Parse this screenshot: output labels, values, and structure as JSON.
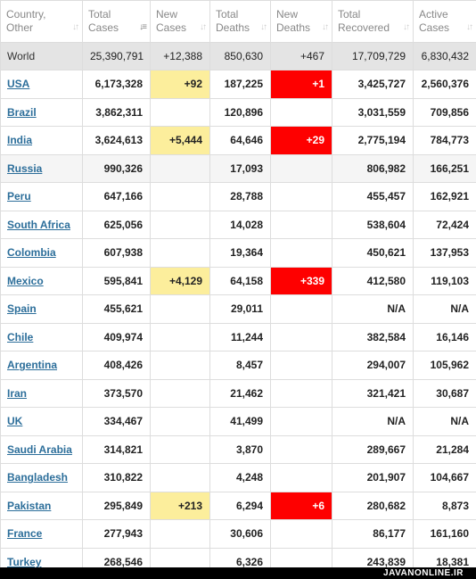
{
  "columns": [
    {
      "line1": "Country,",
      "line2": "Other",
      "sort_icon": "sort-icon",
      "active": false
    },
    {
      "line1": "Total",
      "line2": "Cases",
      "sort_icon": "sort-desc-icon",
      "active": true
    },
    {
      "line1": "New",
      "line2": "Cases",
      "sort_icon": "sort-icon",
      "active": false
    },
    {
      "line1": "Total",
      "line2": "Deaths",
      "sort_icon": "sort-icon",
      "active": false
    },
    {
      "line1": "New",
      "line2": "Deaths",
      "sort_icon": "sort-icon",
      "active": false
    },
    {
      "line1": "Total",
      "line2": "Recovered",
      "sort_icon": "sort-icon",
      "active": false
    },
    {
      "line1": "Active",
      "line2": "Cases",
      "sort_icon": "sort-icon",
      "active": false
    }
  ],
  "world": {
    "country": "World",
    "total_cases": "25,390,791",
    "new_cases": "+12,388",
    "total_deaths": "850,630",
    "new_deaths": "+467",
    "total_recovered": "17,709,729",
    "active_cases": "6,830,432"
  },
  "rows": [
    {
      "country": "USA",
      "total_cases": "6,173,328",
      "new_cases": "+92",
      "total_deaths": "187,225",
      "new_deaths": "+1",
      "total_recovered": "3,425,727",
      "active_cases": "2,560,376"
    },
    {
      "country": "Brazil",
      "total_cases": "3,862,311",
      "new_cases": "",
      "total_deaths": "120,896",
      "new_deaths": "",
      "total_recovered": "3,031,559",
      "active_cases": "709,856"
    },
    {
      "country": "India",
      "total_cases": "3,624,613",
      "new_cases": "+5,444",
      "total_deaths": "64,646",
      "new_deaths": "+29",
      "total_recovered": "2,775,194",
      "active_cases": "784,773"
    },
    {
      "country": "Russia",
      "total_cases": "990,326",
      "new_cases": "",
      "total_deaths": "17,093",
      "new_deaths": "",
      "total_recovered": "806,982",
      "active_cases": "166,251"
    },
    {
      "country": "Peru",
      "total_cases": "647,166",
      "new_cases": "",
      "total_deaths": "28,788",
      "new_deaths": "",
      "total_recovered": "455,457",
      "active_cases": "162,921"
    },
    {
      "country": "South Africa",
      "total_cases": "625,056",
      "new_cases": "",
      "total_deaths": "14,028",
      "new_deaths": "",
      "total_recovered": "538,604",
      "active_cases": "72,424"
    },
    {
      "country": "Colombia",
      "total_cases": "607,938",
      "new_cases": "",
      "total_deaths": "19,364",
      "new_deaths": "",
      "total_recovered": "450,621",
      "active_cases": "137,953"
    },
    {
      "country": "Mexico",
      "total_cases": "595,841",
      "new_cases": "+4,129",
      "total_deaths": "64,158",
      "new_deaths": "+339",
      "total_recovered": "412,580",
      "active_cases": "119,103"
    },
    {
      "country": "Spain",
      "total_cases": "455,621",
      "new_cases": "",
      "total_deaths": "29,011",
      "new_deaths": "",
      "total_recovered": "N/A",
      "active_cases": "N/A"
    },
    {
      "country": "Chile",
      "total_cases": "409,974",
      "new_cases": "",
      "total_deaths": "11,244",
      "new_deaths": "",
      "total_recovered": "382,584",
      "active_cases": "16,146"
    },
    {
      "country": "Argentina",
      "total_cases": "408,426",
      "new_cases": "",
      "total_deaths": "8,457",
      "new_deaths": "",
      "total_recovered": "294,007",
      "active_cases": "105,962"
    },
    {
      "country": "Iran",
      "total_cases": "373,570",
      "new_cases": "",
      "total_deaths": "21,462",
      "new_deaths": "",
      "total_recovered": "321,421",
      "active_cases": "30,687"
    },
    {
      "country": "UK",
      "total_cases": "334,467",
      "new_cases": "",
      "total_deaths": "41,499",
      "new_deaths": "",
      "total_recovered": "N/A",
      "active_cases": "N/A"
    },
    {
      "country": "Saudi Arabia",
      "total_cases": "314,821",
      "new_cases": "",
      "total_deaths": "3,870",
      "new_deaths": "",
      "total_recovered": "289,667",
      "active_cases": "21,284"
    },
    {
      "country": "Bangladesh",
      "total_cases": "310,822",
      "new_cases": "",
      "total_deaths": "4,248",
      "new_deaths": "",
      "total_recovered": "201,907",
      "active_cases": "104,667"
    },
    {
      "country": "Pakistan",
      "total_cases": "295,849",
      "new_cases": "+213",
      "total_deaths": "6,294",
      "new_deaths": "+6",
      "total_recovered": "280,682",
      "active_cases": "8,873"
    },
    {
      "country": "France",
      "total_cases": "277,943",
      "new_cases": "",
      "total_deaths": "30,606",
      "new_deaths": "",
      "total_recovered": "86,177",
      "active_cases": "161,160"
    },
    {
      "country": "Turkey",
      "total_cases": "268,546",
      "new_cases": "",
      "total_deaths": "6,326",
      "new_deaths": "",
      "total_recovered": "243,839",
      "active_cases": "18,381"
    }
  ],
  "shaded_rows": [
    "Russia"
  ],
  "colors": {
    "new_cases_highlight": "#fcee9c",
    "new_deaths_highlight": "#fe0000",
    "link": "#2c6e9a",
    "world_row": "#e4e4e4"
  },
  "watermark": "JAVANONLINE.IR"
}
